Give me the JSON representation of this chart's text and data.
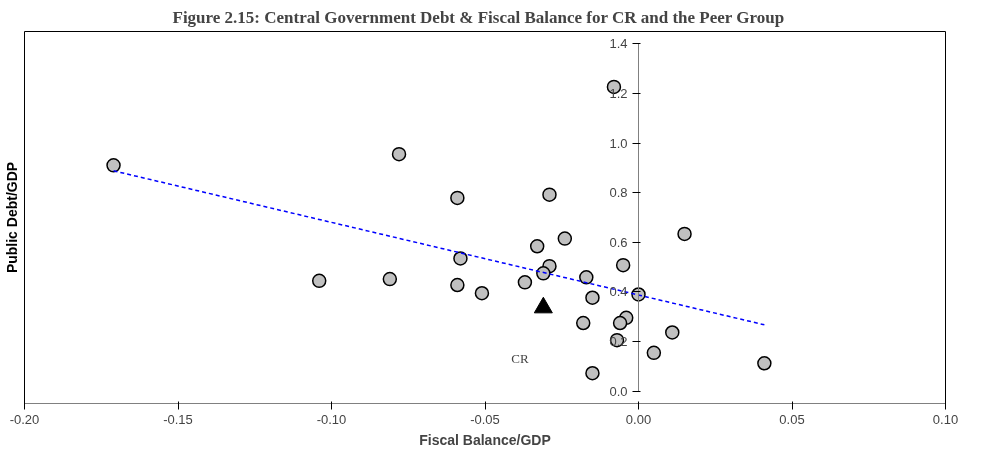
{
  "chart_data": {
    "type": "scatter",
    "title": "Figure 2.15:    Central Government Debt & Fiscal Balance for CR and the Peer Group",
    "xlabel": "Fiscal Balance/GDP",
    "ylabel": "Public Debt/GDP",
    "xlim": [
      -0.2,
      0.1
    ],
    "ylim": [
      0,
      1.4
    ],
    "xticks": [
      {
        "value": -0.2,
        "label": "-0.20"
      },
      {
        "value": -0.15,
        "label": "-0.15"
      },
      {
        "value": -0.1,
        "label": "-0.10"
      },
      {
        "value": -0.05,
        "label": "-0.05"
      },
      {
        "value": 0,
        "label": "0.00"
      },
      {
        "value": 0.05,
        "label": "0.05"
      },
      {
        "value": 0.1,
        "label": "0.10"
      }
    ],
    "yticks": [
      {
        "value": 0,
        "label": "0.0"
      },
      {
        "value": 0.2,
        "label": "0.2"
      },
      {
        "value": 0.4,
        "label": "0.4"
      },
      {
        "value": 0.6,
        "label": "0.6"
      },
      {
        "value": 0.8,
        "label": "0.8"
      },
      {
        "value": 1,
        "label": "1.0"
      },
      {
        "value": 1.2,
        "label": "1.2"
      },
      {
        "value": 1.4,
        "label": "1.4"
      }
    ],
    "grid": false,
    "legend": false,
    "series": [
      {
        "type": "scatter",
        "marker": "circle",
        "color": "#c0c0c0",
        "x": [
          -0.171,
          -0.078,
          -0.104,
          -0.081,
          -0.008,
          -0.059,
          -0.029,
          -0.024,
          -0.033,
          0.015,
          -0.058,
          -0.029,
          -0.005,
          -0.031,
          -0.017,
          -0.059,
          -0.037,
          -0.051,
          0.0,
          -0.015,
          -0.004,
          -0.006,
          -0.018,
          0.011,
          -0.007,
          0.005,
          0.041,
          -0.015
        ],
        "values": [
          0.91,
          0.955,
          0.445,
          0.452,
          1.226,
          0.779,
          0.792,
          0.615,
          0.584,
          0.634,
          0.535,
          0.504,
          0.508,
          0.475,
          0.459,
          0.428,
          0.439,
          0.395,
          0.39,
          0.377,
          0.296,
          0.275,
          0.275,
          0.237,
          0.206,
          0.155,
          0.113,
          0.073
        ]
      },
      {
        "type": "scatter",
        "name": "CR",
        "marker": "triangle",
        "color": "#000000",
        "x": [
          -0.031
        ],
        "values": [
          0.337
        ]
      },
      {
        "type": "line",
        "marker": "none",
        "line_style": "dashed",
        "color": "#0000ff",
        "x": [
          -0.171,
          0.041
        ],
        "values": [
          0.888,
          0.268
        ]
      }
    ]
  }
}
